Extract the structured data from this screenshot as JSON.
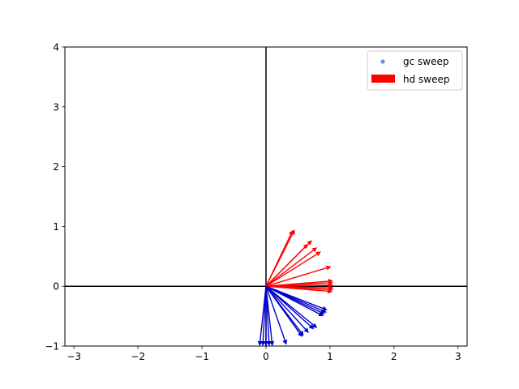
{
  "chart_data": {
    "type": "scatter",
    "xlim": [
      -3.14159,
      3.14159
    ],
    "ylim": [
      -1,
      4
    ],
    "xticks": [
      -3,
      -2,
      -1,
      0,
      1,
      2,
      3
    ],
    "xtick_labels": [
      "−3",
      "−2",
      "−1",
      "0",
      "1",
      "2",
      "3"
    ],
    "yticks": [
      -1,
      0,
      1,
      2,
      3,
      4
    ],
    "ytick_labels": [
      "−1",
      "0",
      "1",
      "2",
      "3",
      "4"
    ],
    "grid": false,
    "axis_lines": {
      "x0": true,
      "y0": true
    },
    "legend_position": "top-right",
    "series": [
      {
        "name": "gc sweep",
        "marker": "point",
        "color": "#6495ed",
        "points": []
      },
      {
        "name": "hd sweep",
        "marker": "arrow",
        "color": "#ff0000",
        "origin": [
          0,
          0
        ],
        "vectors": [
          [
            0.45,
            0.95
          ],
          [
            0.42,
            0.94
          ],
          [
            0.72,
            0.77
          ],
          [
            0.66,
            0.71
          ],
          [
            0.8,
            0.65
          ],
          [
            0.86,
            0.58
          ],
          [
            1.02,
            0.33
          ],
          [
            1.05,
            0.09
          ],
          [
            1.05,
            0.06
          ],
          [
            1.05,
            0.02
          ],
          [
            1.06,
            -0.03
          ],
          [
            1.05,
            -0.06
          ],
          [
            1.04,
            -0.09
          ]
        ]
      },
      {
        "name": "",
        "marker": "arrow",
        "color": "#0000cc",
        "origin": [
          0,
          0
        ],
        "vectors": [
          [
            0.96,
            -0.4
          ],
          [
            0.95,
            -0.44
          ],
          [
            0.92,
            -0.47
          ],
          [
            0.9,
            -0.5
          ],
          [
            0.8,
            -0.7
          ],
          [
            0.75,
            -0.72
          ],
          [
            0.67,
            -0.78
          ],
          [
            0.59,
            -0.83
          ],
          [
            0.57,
            -0.85
          ],
          [
            0.32,
            -0.98
          ],
          [
            0.1,
            -1.0
          ],
          [
            0.05,
            -1.0
          ],
          [
            0.0,
            -1.0
          ],
          [
            -0.05,
            -1.0
          ],
          [
            -0.1,
            -1.0
          ]
        ]
      }
    ]
  },
  "colors": {
    "hd_arrow": "#ff0000",
    "gc_arrow": "#0000cc",
    "gc_marker": "#6495ed"
  }
}
